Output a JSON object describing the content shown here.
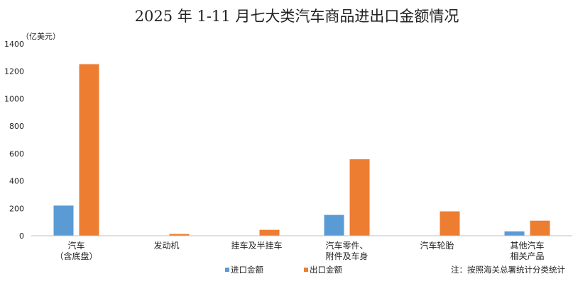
{
  "chart_data": {
    "type": "bar",
    "title": "2025 年 1-11 月七大类汽车商品进出口金额情况",
    "ylabel": "（亿美元）",
    "ylim": [
      0,
      1400
    ],
    "yticks": [
      0,
      200,
      400,
      600,
      800,
      1000,
      1200,
      1400
    ],
    "categories": [
      [
        "汽车",
        "（含底盘）"
      ],
      [
        "发动机"
      ],
      [
        "挂车及半挂车"
      ],
      [
        "汽车零件、",
        "附件及车身"
      ],
      [
        "汽车轮胎"
      ],
      [
        "其他汽车",
        "相关产品"
      ]
    ],
    "series": [
      {
        "name": "进口金额",
        "color": "#5B9BD5",
        "values": [
          220,
          1,
          1,
          152,
          0,
          32
        ]
      },
      {
        "name": "出口金额",
        "color": "#ED7D31",
        "values": [
          1252,
          13,
          43,
          558,
          178,
          110
        ]
      }
    ],
    "legend": "bottom",
    "grid": false
  },
  "note": "注：按照海关总署统计分类统计"
}
